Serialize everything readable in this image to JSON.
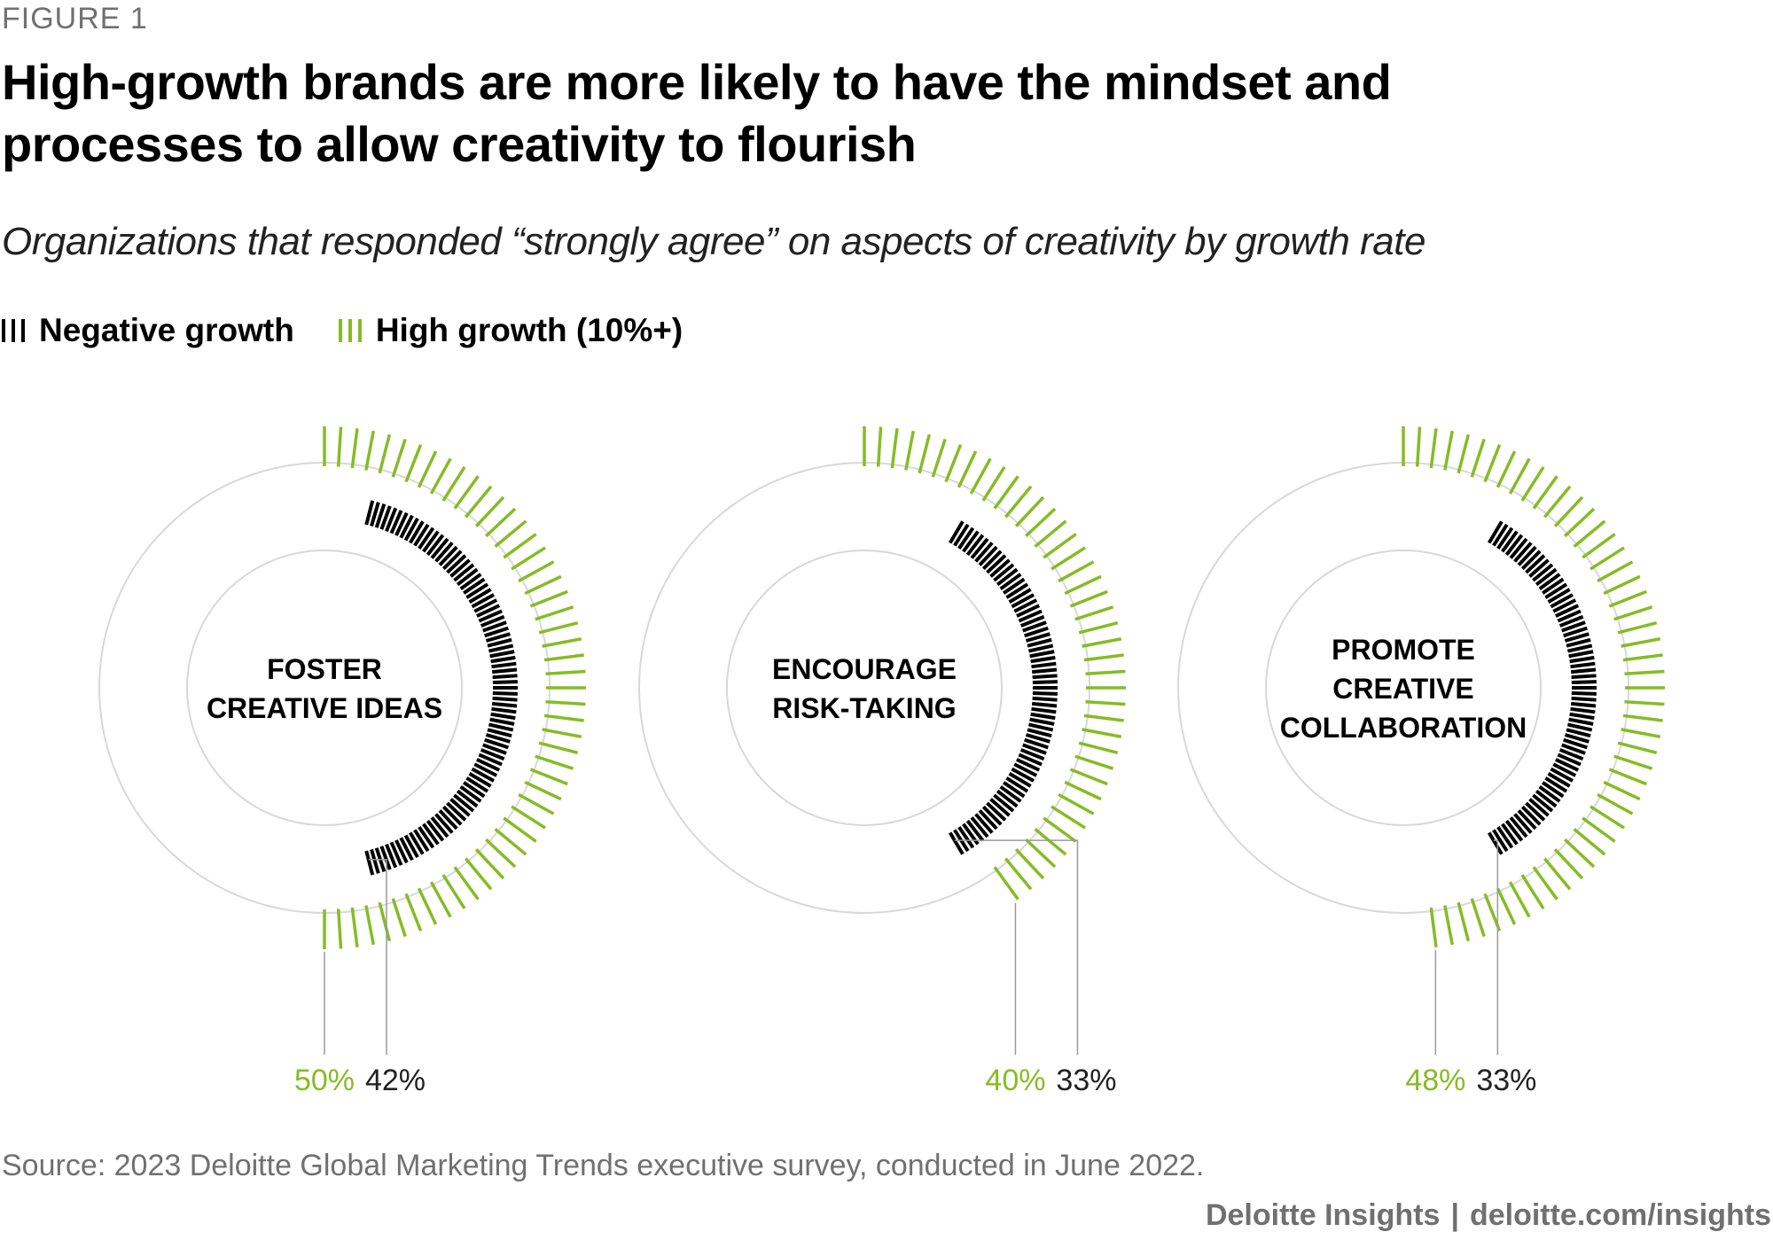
{
  "figure_label": "FIGURE 1",
  "chart_data": {
    "type": "radial-bar",
    "title": "High-growth brands are more likely to have the mindset and processes to allow creativity to flourish",
    "subtitle": "Organizations that responded “strongly agree” on aspects of creativity by growth rate",
    "legend": [
      {
        "name": "Negative growth",
        "color": "#000000"
      },
      {
        "name": "High growth (10%+)",
        "color": "#86bc25"
      }
    ],
    "categories": [
      [
        "FOSTER",
        "CREATIVE IDEAS"
      ],
      [
        "ENCOURAGE",
        "RISK-TAKING"
      ],
      [
        "PROMOTE",
        "CREATIVE",
        "COLLABORATION"
      ]
    ],
    "series": [
      {
        "name": "High growth (10%+)",
        "values": [
          50,
          40,
          48
        ],
        "labels": [
          "50%",
          "40%",
          "48%"
        ]
      },
      {
        "name": "Negative growth",
        "values": [
          42,
          33,
          33
        ],
        "labels": [
          "42%",
          "33%",
          "33%"
        ]
      }
    ],
    "scale_max": 100
  },
  "source": "Source: 2023 Deloitte Global Marketing Trends executive survey, conducted in June 2022.",
  "footer": {
    "brand": "Deloitte Insights",
    "separator": "|",
    "url": "deloitte.com/insights"
  },
  "colors": {
    "green": "#86bc25",
    "black": "#000000",
    "ring": "#d8d8d8",
    "leader": "#9a9a9a"
  }
}
